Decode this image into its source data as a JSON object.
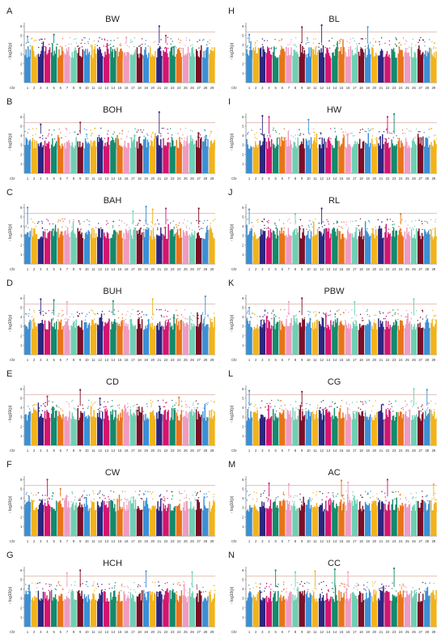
{
  "chart_data": [
    {
      "type": "scatter",
      "panel": "A",
      "title": "BW",
      "ylabel": "- log10(p)",
      "yticks": [
        "1",
        "2",
        "3",
        "4",
        "5",
        "6"
      ],
      "xlabel_prefix": "Chr",
      "x_ticks": [
        "1",
        "2",
        "3",
        "4",
        "5",
        "6",
        "7",
        "8",
        "9",
        "10",
        "11",
        "12",
        "13",
        "14",
        "15",
        "16",
        "17",
        "18",
        "19",
        "20",
        "21",
        "22",
        "23",
        "24",
        "25",
        "26",
        "27",
        "28",
        "29"
      ],
      "threshold": 5.4,
      "ylim": [
        0,
        6.2
      ],
      "peaks": [
        {
          "chr": 1,
          "value": 4.9
        },
        {
          "chr": 5,
          "value": 5.1
        },
        {
          "chr": 16,
          "value": 4.8
        },
        {
          "chr": 21,
          "value": 6.0
        },
        {
          "chr": 22,
          "value": 5.0
        }
      ]
    },
    {
      "type": "scatter",
      "panel": "B",
      "title": "BOH",
      "ylabel": "- log10(p)",
      "yticks": [
        "1",
        "2",
        "3",
        "4",
        "5",
        "6"
      ],
      "xlabel_prefix": "Chr",
      "x_ticks": [
        "1",
        "2",
        "3",
        "4",
        "5",
        "6",
        "7",
        "8",
        "9",
        "10",
        "11",
        "12",
        "13",
        "14",
        "15",
        "16",
        "17",
        "18",
        "19",
        "20",
        "21",
        "22",
        "23",
        "24",
        "25",
        "26",
        "27",
        "28",
        "29"
      ],
      "threshold": 5.4,
      "ylim": [
        0,
        6.2
      ],
      "peaks": [
        {
          "chr": 3,
          "value": 5.2
        },
        {
          "chr": 9,
          "value": 5.4
        },
        {
          "chr": 21,
          "value": 6.5
        }
      ]
    },
    {
      "type": "scatter",
      "panel": "C",
      "title": "BAH",
      "ylabel": "- log10(p)",
      "yticks": [
        "1",
        "2",
        "3",
        "4",
        "5",
        "6"
      ],
      "xlabel_prefix": "Chr",
      "x_ticks": [
        "1",
        "2",
        "3",
        "4",
        "5",
        "6",
        "7",
        "8",
        "9",
        "10",
        "11",
        "12",
        "13",
        "14",
        "15",
        "16",
        "17",
        "18",
        "19",
        "20",
        "21",
        "22",
        "23",
        "24",
        "25",
        "26",
        "27",
        "28",
        "29"
      ],
      "threshold": 5.4,
      "ylim": [
        0,
        6.2
      ],
      "peaks": [
        {
          "chr": 1,
          "value": 6.0
        },
        {
          "chr": 17,
          "value": 5.6
        },
        {
          "chr": 19,
          "value": 6.1
        },
        {
          "chr": 20,
          "value": 5.8
        },
        {
          "chr": 22,
          "value": 5.9
        },
        {
          "chr": 27,
          "value": 5.9
        }
      ]
    },
    {
      "type": "scatter",
      "panel": "D",
      "title": "BUH",
      "ylabel": "- log10(p)",
      "yticks": [
        "1",
        "2",
        "3",
        "4",
        "5",
        "6"
      ],
      "xlabel_prefix": "Chr",
      "x_ticks": [
        "1",
        "2",
        "3",
        "4",
        "5",
        "6",
        "7",
        "8",
        "9",
        "10",
        "11",
        "12",
        "13",
        "14",
        "15",
        "16",
        "17",
        "18",
        "19",
        "20",
        "21",
        "22",
        "23",
        "24",
        "25",
        "26",
        "27",
        "28",
        "29"
      ],
      "threshold": 5.4,
      "ylim": [
        0,
        6.2
      ],
      "peaks": [
        {
          "chr": 3,
          "value": 5.9
        },
        {
          "chr": 5,
          "value": 5.8
        },
        {
          "chr": 7,
          "value": 5.6
        },
        {
          "chr": 14,
          "value": 5.7
        },
        {
          "chr": 20,
          "value": 5.9
        },
        {
          "chr": 28,
          "value": 6.2
        }
      ]
    },
    {
      "type": "scatter",
      "panel": "E",
      "title": "CD",
      "ylabel": "- log10(p)",
      "yticks": [
        "1",
        "2",
        "3",
        "4",
        "5",
        "6"
      ],
      "xlabel_prefix": "Chr",
      "x_ticks": [
        "1",
        "2",
        "3",
        "4",
        "5",
        "6",
        "7",
        "8",
        "9",
        "10",
        "11",
        "12",
        "13",
        "14",
        "15",
        "16",
        "17",
        "18",
        "19",
        "20",
        "21",
        "22",
        "23",
        "24",
        "25",
        "26",
        "27",
        "28",
        "29"
      ],
      "threshold": 5.4,
      "ylim": [
        0,
        6.2
      ],
      "peaks": [
        {
          "chr": 4,
          "value": 5.2
        },
        {
          "chr": 9,
          "value": 5.9
        },
        {
          "chr": 12,
          "value": 5.0
        },
        {
          "chr": 24,
          "value": 5.1
        }
      ]
    },
    {
      "type": "scatter",
      "panel": "F",
      "title": "CW",
      "ylabel": "- log10(p)",
      "yticks": [
        "1",
        "2",
        "3",
        "4",
        "5",
        "6"
      ],
      "xlabel_prefix": "Chr",
      "x_ticks": [
        "1",
        "2",
        "3",
        "4",
        "5",
        "6",
        "7",
        "8",
        "9",
        "10",
        "11",
        "12",
        "13",
        "14",
        "15",
        "16",
        "17",
        "18",
        "19",
        "20",
        "21",
        "22",
        "23",
        "24",
        "25",
        "26",
        "27",
        "28",
        "29"
      ],
      "threshold": 5.4,
      "ylim": [
        0,
        6.2
      ],
      "peaks": [
        {
          "chr": 4,
          "value": 6.0
        },
        {
          "chr": 6,
          "value": 5.0
        }
      ]
    },
    {
      "type": "scatter",
      "panel": "G",
      "title": "HCH",
      "ylabel": "- log10(p)",
      "yticks": [
        "1",
        "2",
        "3",
        "4",
        "5",
        "6"
      ],
      "xlabel_prefix": "Chr",
      "x_ticks": [
        "1",
        "2",
        "3",
        "4",
        "5",
        "6",
        "7",
        "8",
        "9",
        "10",
        "11",
        "12",
        "13",
        "14",
        "15",
        "16",
        "17",
        "18",
        "19",
        "20",
        "21",
        "22",
        "23",
        "24",
        "25",
        "26",
        "27",
        "28",
        "29"
      ],
      "threshold": 5.4,
      "ylim": [
        0,
        6.2
      ],
      "peaks": [
        {
          "chr": 7,
          "value": 5.7
        },
        {
          "chr": 9,
          "value": 6.0
        },
        {
          "chr": 19,
          "value": 5.9
        },
        {
          "chr": 26,
          "value": 5.8
        }
      ]
    },
    {
      "type": "scatter",
      "panel": "H",
      "title": "BL",
      "ylabel": "- log10(p)",
      "yticks": [
        "1",
        "2",
        "3",
        "4",
        "5",
        "6"
      ],
      "xlabel_prefix": "Chr",
      "x_ticks": [
        "1",
        "2",
        "3",
        "4",
        "5",
        "6",
        "7",
        "8",
        "9",
        "10",
        "11",
        "12",
        "13",
        "14",
        "15",
        "16",
        "17",
        "18",
        "19",
        "20",
        "21",
        "22",
        "23",
        "24",
        "25",
        "26",
        "27",
        "28",
        "29"
      ],
      "threshold": 5.4,
      "ylim": [
        0,
        6.2
      ],
      "peaks": [
        {
          "chr": 1,
          "value": 5.1
        },
        {
          "chr": 9,
          "value": 5.9
        },
        {
          "chr": 12,
          "value": 6.1
        },
        {
          "chr": 19,
          "value": 5.9
        }
      ]
    },
    {
      "type": "scatter",
      "panel": "I",
      "title": "HW",
      "ylabel": "- log10(p)",
      "yticks": [
        "1",
        "2",
        "3",
        "4",
        "5",
        "6"
      ],
      "xlabel_prefix": "Chr",
      "x_ticks": [
        "1",
        "2",
        "3",
        "4",
        "5",
        "6",
        "7",
        "8",
        "9",
        "10",
        "11",
        "12",
        "13",
        "14",
        "15",
        "16",
        "17",
        "18",
        "19",
        "20",
        "21",
        "22",
        "23",
        "24",
        "25",
        "26",
        "27",
        "28",
        "29"
      ],
      "threshold": 5.4,
      "ylim": [
        0,
        6.2
      ],
      "peaks": [
        {
          "chr": 3,
          "value": 6.1
        },
        {
          "chr": 4,
          "value": 6.0
        },
        {
          "chr": 10,
          "value": 5.7
        },
        {
          "chr": 22,
          "value": 6.0
        },
        {
          "chr": 23,
          "value": 6.3
        }
      ]
    },
    {
      "type": "scatter",
      "panel": "J",
      "title": "RL",
      "ylabel": "- log10(p)",
      "yticks": [
        "1",
        "2",
        "3",
        "4",
        "5",
        "6"
      ],
      "xlabel_prefix": "Chr",
      "x_ticks": [
        "1",
        "2",
        "3",
        "4",
        "5",
        "6",
        "7",
        "8",
        "9",
        "10",
        "11",
        "12",
        "13",
        "14",
        "15",
        "16",
        "17",
        "18",
        "19",
        "20",
        "21",
        "22",
        "23",
        "24",
        "25",
        "26",
        "27",
        "28",
        "29"
      ],
      "threshold": 5.4,
      "ylim": [
        0,
        6.2
      ],
      "peaks": [
        {
          "chr": 1,
          "value": 5.8
        },
        {
          "chr": 8,
          "value": 5.3
        },
        {
          "chr": 12,
          "value": 5.9
        },
        {
          "chr": 24,
          "value": 5.3
        }
      ]
    },
    {
      "type": "scatter",
      "panel": "K",
      "title": "PBW",
      "ylabel": "- log10(p)",
      "yticks": [
        "1",
        "2",
        "3",
        "4",
        "5",
        "6"
      ],
      "xlabel_prefix": "Chr",
      "x_ticks": [
        "1",
        "2",
        "3",
        "4",
        "5",
        "6",
        "7",
        "8",
        "9",
        "10",
        "11",
        "12",
        "13",
        "14",
        "15",
        "16",
        "17",
        "18",
        "19",
        "20",
        "21",
        "22",
        "23",
        "24",
        "25",
        "26",
        "27",
        "28",
        "29"
      ],
      "threshold": 5.4,
      "ylim": [
        0,
        6.2
      ],
      "peaks": [
        {
          "chr": 1,
          "value": 5.0
        },
        {
          "chr": 7,
          "value": 5.6
        },
        {
          "chr": 9,
          "value": 6.0
        },
        {
          "chr": 17,
          "value": 5.6
        },
        {
          "chr": 26,
          "value": 5.9
        }
      ]
    },
    {
      "type": "scatter",
      "panel": "L",
      "title": "CG",
      "ylabel": "- log10(p)",
      "yticks": [
        "1",
        "2",
        "3",
        "4",
        "5",
        "6"
      ],
      "xlabel_prefix": "Chr",
      "x_ticks": [
        "1",
        "2",
        "3",
        "4",
        "5",
        "6",
        "7",
        "8",
        "9",
        "10",
        "11",
        "12",
        "13",
        "14",
        "15",
        "16",
        "17",
        "18",
        "19",
        "20",
        "21",
        "22",
        "23",
        "24",
        "25",
        "26",
        "27",
        "28",
        "29"
      ],
      "threshold": 5.4,
      "ylim": [
        0,
        6.2
      ],
      "peaks": [
        {
          "chr": 1,
          "value": 5.8
        },
        {
          "chr": 9,
          "value": 5.7
        },
        {
          "chr": 26,
          "value": 6.0
        },
        {
          "chr": 28,
          "value": 5.9
        }
      ]
    },
    {
      "type": "scatter",
      "panel": "M",
      "title": "AC",
      "ylabel": "- log10(p)",
      "yticks": [
        "1",
        "2",
        "3",
        "4",
        "5",
        "6"
      ],
      "xlabel_prefix": "Chr",
      "x_ticks": [
        "1",
        "2",
        "3",
        "4",
        "5",
        "6",
        "7",
        "8",
        "9",
        "10",
        "11",
        "12",
        "13",
        "14",
        "15",
        "16",
        "17",
        "18",
        "19",
        "20",
        "21",
        "22",
        "23",
        "24",
        "25",
        "26",
        "27",
        "28",
        "29"
      ],
      "threshold": 5.4,
      "ylim": [
        0,
        6.2
      ],
      "peaks": [
        {
          "chr": 4,
          "value": 5.6
        },
        {
          "chr": 7,
          "value": 5.5
        },
        {
          "chr": 15,
          "value": 5.9
        },
        {
          "chr": 16,
          "value": 5.7
        },
        {
          "chr": 22,
          "value": 6.0
        },
        {
          "chr": 29,
          "value": 5.5
        }
      ]
    },
    {
      "type": "scatter",
      "panel": "N",
      "title": "CC",
      "ylabel": "- log10(p)",
      "yticks": [
        "1",
        "2",
        "3",
        "4",
        "5",
        "6"
      ],
      "xlabel_prefix": "Chr",
      "x_ticks": [
        "1",
        "2",
        "3",
        "4",
        "5",
        "6",
        "7",
        "8",
        "9",
        "10",
        "11",
        "12",
        "13",
        "14",
        "15",
        "16",
        "17",
        "18",
        "19",
        "20",
        "21",
        "22",
        "23",
        "24",
        "25",
        "26",
        "27",
        "28",
        "29"
      ],
      "threshold": 5.4,
      "ylim": [
        0,
        6.2
      ],
      "peaks": [
        {
          "chr": 5,
          "value": 6.0
        },
        {
          "chr": 8,
          "value": 5.8
        },
        {
          "chr": 11,
          "value": 5.9
        },
        {
          "chr": 14,
          "value": 6.1
        },
        {
          "chr": 16,
          "value": 5.8
        },
        {
          "chr": 23,
          "value": 6.2
        }
      ]
    }
  ],
  "colors": [
    "#3a8fd6",
    "#f2b21a",
    "#2c2680",
    "#d4146f",
    "#138a6b",
    "#e87419",
    "#f09ac0",
    "#6fcfb3",
    "#7a0f28"
  ]
}
